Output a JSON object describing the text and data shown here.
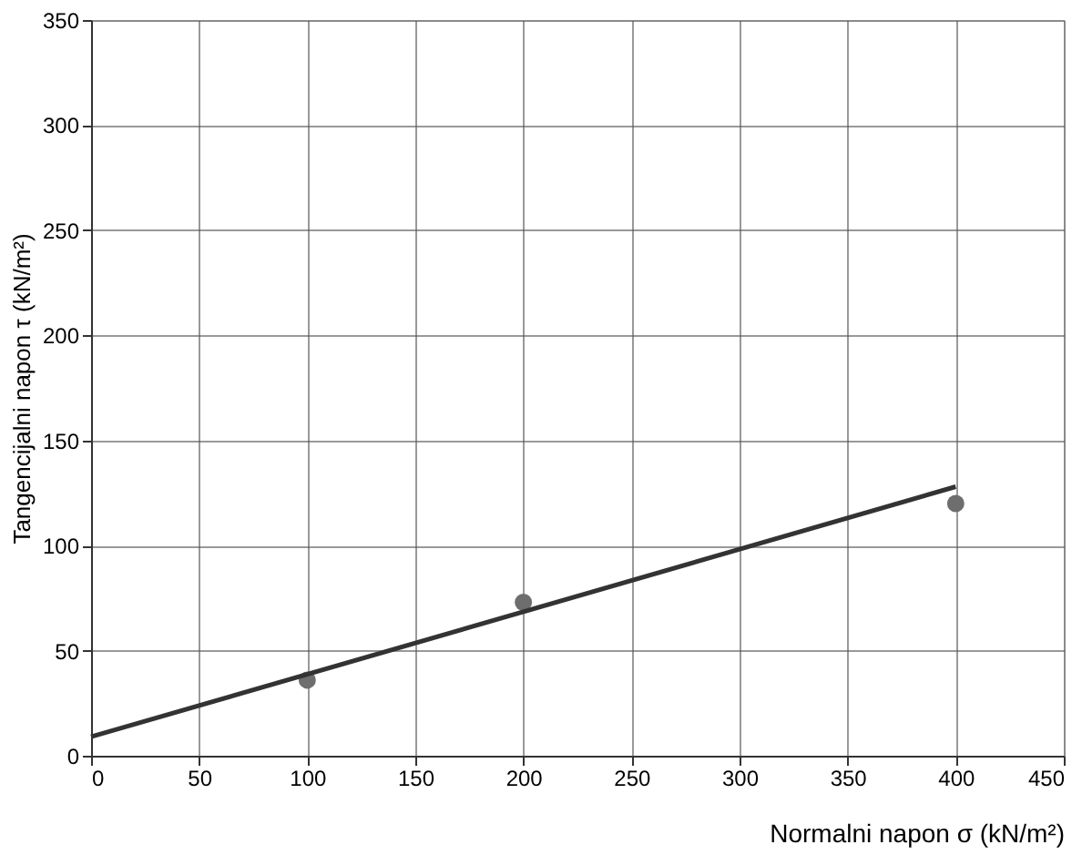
{
  "chart_data": {
    "type": "scatter",
    "xlabel": "Normalni napon σ (kN/m²)",
    "ylabel": "Tangencijalni napon τ (kN/m²)",
    "x": [
      100,
      200,
      400
    ],
    "series": [
      {
        "color": "#6e6e6e",
        "marker": "circle",
        "values": [
          36,
          73,
          120
        ]
      },
      {
        "type": "line",
        "color": "#333333",
        "x": [
          0,
          400
        ],
        "values": [
          9,
          128
        ],
        "line_style": "solid"
      }
    ],
    "xlim": [
      0,
      450
    ],
    "ylim": [
      0,
      350
    ],
    "xticks": [
      0,
      50,
      100,
      150,
      200,
      250,
      300,
      350,
      400,
      450
    ],
    "yticks": [
      0,
      50,
      100,
      150,
      200,
      250,
      300,
      350
    ],
    "grid": true
  }
}
